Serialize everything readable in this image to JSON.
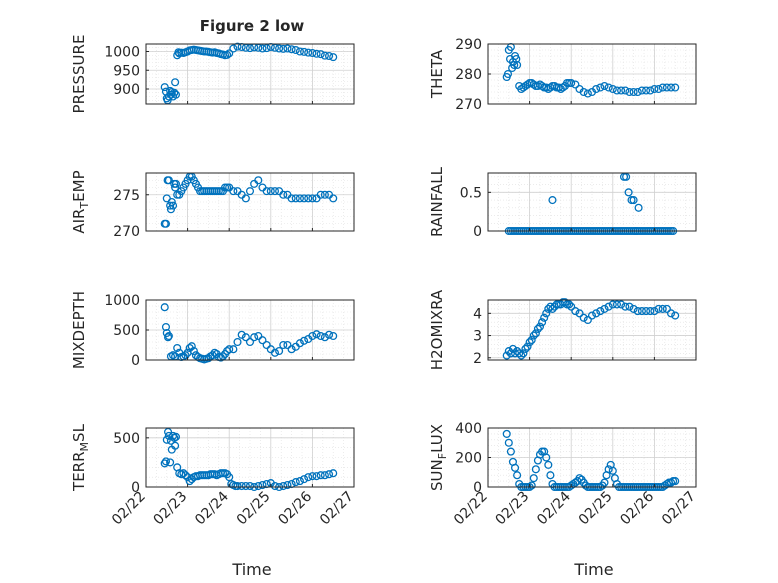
{
  "figure": {
    "title": "Figure 2 low",
    "x_label": "Time",
    "x_ticks": [
      "02/22",
      "02/23",
      "02/24",
      "02/25",
      "02/26",
      "02/27"
    ]
  },
  "colors": {
    "marker": "#0072bd",
    "axis": "#262626",
    "grid": "#dfdfdf"
  },
  "chart_data": [
    {
      "type": "scatter",
      "ylabel_main": "PRESSURE",
      "ylabel_sub": "",
      "ylim": [
        860,
        1020
      ],
      "yticks": [
        900,
        950,
        1000
      ],
      "xlim": [
        0,
        5
      ],
      "x": [
        0.45,
        0.48,
        0.5,
        0.52,
        0.55,
        0.58,
        0.6,
        0.62,
        0.65,
        0.68,
        0.7,
        0.72,
        0.75,
        0.78,
        0.8,
        0.85,
        0.9,
        0.95,
        1.0,
        1.05,
        1.1,
        1.15,
        1.2,
        1.25,
        1.3,
        1.35,
        1.4,
        1.45,
        1.5,
        1.55,
        1.6,
        1.65,
        1.7,
        1.75,
        1.8,
        1.85,
        1.9,
        1.95,
        2.0,
        2.1,
        2.2,
        2.3,
        2.4,
        2.5,
        2.6,
        2.7,
        2.8,
        2.9,
        3.0,
        3.1,
        3.2,
        3.3,
        3.4,
        3.5,
        3.6,
        3.7,
        3.8,
        3.9,
        4.0,
        4.1,
        4.2,
        4.3,
        4.4,
        4.5
      ],
      "y": [
        905,
        893,
        875,
        870,
        880,
        895,
        885,
        892,
        880,
        890,
        918,
        885,
        990,
        998,
        995,
        997,
        996,
        998,
        1000,
        1003,
        1004,
        1005,
        1004,
        1003,
        1002,
        1001,
        1000,
        1000,
        999,
        998,
        997,
        998,
        996,
        995,
        993,
        992,
        990,
        991,
        995,
        1008,
        1013,
        1012,
        1010,
        1009,
        1011,
        1010,
        1008,
        1009,
        1012,
        1010,
        1008,
        1007,
        1008,
        1006,
        1004,
        1000,
        999,
        997,
        996,
        994,
        993,
        989,
        988,
        985
      ]
    },
    {
      "type": "scatter",
      "ylabel_main": "THETA",
      "ylabel_sub": "",
      "ylim": [
        270,
        290
      ],
      "yticks": [
        270,
        280,
        290
      ],
      "xlim": [
        0,
        5
      ],
      "x": [
        0.45,
        0.48,
        0.5,
        0.53,
        0.55,
        0.58,
        0.6,
        0.63,
        0.65,
        0.68,
        0.7,
        0.75,
        0.8,
        0.85,
        0.9,
        0.95,
        1.0,
        1.05,
        1.1,
        1.15,
        1.2,
        1.25,
        1.3,
        1.35,
        1.4,
        1.45,
        1.5,
        1.55,
        1.6,
        1.65,
        1.7,
        1.75,
        1.8,
        1.85,
        1.9,
        1.95,
        2.0,
        2.1,
        2.2,
        2.3,
        2.4,
        2.5,
        2.6,
        2.7,
        2.8,
        2.9,
        3.0,
        3.1,
        3.2,
        3.3,
        3.4,
        3.5,
        3.6,
        3.7,
        3.8,
        3.9,
        4.0,
        4.1,
        4.2,
        4.3,
        4.4,
        4.5
      ],
      "y": [
        279,
        280,
        288,
        285,
        289,
        282,
        284,
        283,
        286,
        285,
        283,
        276,
        275,
        275.5,
        276,
        276.5,
        277,
        277,
        276.5,
        276,
        276,
        276.5,
        276,
        275.5,
        275.5,
        275,
        275.5,
        276,
        276,
        275.5,
        275.5,
        275,
        275.5,
        276,
        277,
        277,
        277,
        276.5,
        275,
        274,
        273.5,
        274,
        275,
        275.5,
        276,
        275.5,
        275,
        274.5,
        274.5,
        274.5,
        274,
        274,
        274,
        274.5,
        274.5,
        274.5,
        275,
        275,
        275.5,
        275.5,
        275.5,
        275.5
      ]
    },
    {
      "type": "scatter",
      "ylabel_main": "AIR",
      "ylabel_sub": "T",
      "ylabel_tail": "EMP",
      "ylim": [
        270,
        278
      ],
      "yticks": [
        270,
        275
      ],
      "xlim": [
        0,
        5
      ],
      "x": [
        0.45,
        0.48,
        0.5,
        0.52,
        0.55,
        0.58,
        0.6,
        0.62,
        0.65,
        0.68,
        0.7,
        0.72,
        0.75,
        0.8,
        0.85,
        0.9,
        0.95,
        1.0,
        1.05,
        1.1,
        1.15,
        1.2,
        1.25,
        1.3,
        1.35,
        1.4,
        1.45,
        1.5,
        1.55,
        1.6,
        1.65,
        1.7,
        1.75,
        1.8,
        1.85,
        1.9,
        1.95,
        2.0,
        2.1,
        2.2,
        2.3,
        2.4,
        2.5,
        2.6,
        2.7,
        2.8,
        2.9,
        3.0,
        3.1,
        3.2,
        3.3,
        3.4,
        3.5,
        3.6,
        3.7,
        3.8,
        3.9,
        4.0,
        4.1,
        4.2,
        4.3,
        4.4,
        4.5
      ],
      "y": [
        271,
        271,
        274.5,
        277,
        277,
        273.5,
        273,
        274,
        273.5,
        276.5,
        276,
        276.5,
        275,
        275,
        275.5,
        276,
        276.5,
        277,
        277.5,
        277.5,
        277,
        276.5,
        276,
        275.5,
        275.5,
        275.5,
        275.5,
        275.5,
        275.5,
        275.5,
        275.5,
        275.5,
        275.5,
        275.5,
        275.5,
        276,
        276,
        276,
        275.5,
        275.5,
        275,
        274.5,
        275.5,
        276.5,
        277,
        276,
        275.5,
        275.5,
        275.5,
        275.5,
        275,
        275,
        274.5,
        274.5,
        274.5,
        274.5,
        274.5,
        274.5,
        274.5,
        275,
        275,
        275,
        274.5
      ]
    },
    {
      "type": "scatter",
      "ylabel_main": "RAINFALL",
      "ylabel_sub": "",
      "ylim": [
        0,
        0.75
      ],
      "yticks": [
        0,
        0.5
      ],
      "xlim": [
        0,
        5
      ],
      "x": [
        0.5,
        0.55,
        0.6,
        0.65,
        0.7,
        0.75,
        0.8,
        0.85,
        0.9,
        0.95,
        1.0,
        1.05,
        1.1,
        1.15,
        1.2,
        1.25,
        1.3,
        1.35,
        1.4,
        1.45,
        1.5,
        1.55,
        1.6,
        1.65,
        1.7,
        1.75,
        1.8,
        1.85,
        1.9,
        1.95,
        2.0,
        2.05,
        2.1,
        2.15,
        2.2,
        2.25,
        2.3,
        2.35,
        2.4,
        2.45,
        2.5,
        2.55,
        2.6,
        2.65,
        2.7,
        2.75,
        2.8,
        2.85,
        2.9,
        2.95,
        3.0,
        3.05,
        3.1,
        3.15,
        3.2,
        3.25,
        3.3,
        3.35,
        3.4,
        3.45,
        3.5,
        3.55,
        3.6,
        3.65,
        3.7,
        3.75,
        3.8,
        3.85,
        3.9,
        3.95,
        4.0,
        4.05,
        4.1,
        4.15,
        4.2,
        4.25,
        4.3,
        4.35,
        4.4,
        4.45,
        1.55,
        3.27,
        3.32,
        3.38,
        3.45,
        3.5,
        3.55,
        3.62
      ],
      "y": [
        0,
        0,
        0,
        0,
        0,
        0,
        0,
        0,
        0,
        0,
        0,
        0,
        0,
        0,
        0,
        0,
        0,
        0,
        0,
        0,
        0,
        0,
        0,
        0,
        0,
        0,
        0,
        0,
        0,
        0,
        0,
        0,
        0,
        0,
        0,
        0,
        0,
        0,
        0,
        0,
        0,
        0,
        0,
        0,
        0,
        0,
        0,
        0,
        0,
        0,
        0,
        0,
        0,
        0,
        0,
        0,
        0,
        0,
        0,
        0,
        0,
        0,
        0,
        0,
        0,
        0,
        0,
        0,
        0,
        0,
        0,
        0,
        0,
        0,
        0,
        0,
        0,
        0,
        0,
        0,
        0.4,
        0.7,
        0.7,
        0.5,
        0.4,
        0.4,
        0,
        0.3
      ]
    },
    {
      "type": "scatter",
      "ylabel_main": "MIXDEPTH",
      "ylabel_sub": "",
      "ylim": [
        0,
        1000
      ],
      "yticks": [
        0,
        500,
        1000
      ],
      "xlim": [
        0,
        5
      ],
      "x": [
        0.45,
        0.48,
        0.5,
        0.53,
        0.55,
        0.6,
        0.65,
        0.7,
        0.75,
        0.8,
        0.85,
        0.9,
        0.95,
        1.0,
        1.05,
        1.1,
        1.15,
        1.2,
        1.25,
        1.3,
        1.35,
        1.4,
        1.45,
        1.5,
        1.55,
        1.6,
        1.65,
        1.7,
        1.75,
        1.8,
        1.85,
        1.9,
        1.95,
        2.0,
        2.1,
        2.2,
        2.3,
        2.4,
        2.5,
        2.6,
        2.7,
        2.8,
        2.9,
        3.0,
        3.1,
        3.2,
        3.3,
        3.4,
        3.5,
        3.6,
        3.7,
        3.8,
        3.9,
        4.0,
        4.1,
        4.2,
        4.3,
        4.4,
        4.5
      ],
      "y": [
        880,
        550,
        450,
        380,
        400,
        60,
        80,
        60,
        200,
        120,
        50,
        60,
        80,
        120,
        200,
        230,
        150,
        80,
        50,
        30,
        20,
        10,
        20,
        30,
        60,
        80,
        120,
        100,
        50,
        40,
        60,
        100,
        150,
        180,
        180,
        300,
        420,
        380,
        300,
        380,
        400,
        330,
        250,
        180,
        120,
        150,
        250,
        250,
        180,
        220,
        280,
        320,
        350,
        400,
        430,
        400,
        380,
        420,
        400
      ]
    },
    {
      "type": "scatter",
      "ylabel_main": "H2OMIXRA",
      "ylabel_sub": "",
      "ylim": [
        1.9,
        4.6
      ],
      "yticks": [
        2,
        3,
        4
      ],
      "xlim": [
        0,
        5
      ],
      "x": [
        0.45,
        0.5,
        0.55,
        0.6,
        0.65,
        0.7,
        0.75,
        0.8,
        0.85,
        0.9,
        0.95,
        1.0,
        1.05,
        1.1,
        1.15,
        1.2,
        1.25,
        1.3,
        1.35,
        1.4,
        1.45,
        1.5,
        1.55,
        1.6,
        1.65,
        1.7,
        1.75,
        1.8,
        1.85,
        1.9,
        1.95,
        2.0,
        2.1,
        2.2,
        2.3,
        2.4,
        2.5,
        2.6,
        2.7,
        2.8,
        2.9,
        3.0,
        3.1,
        3.2,
        3.3,
        3.4,
        3.5,
        3.6,
        3.7,
        3.8,
        3.9,
        4.0,
        4.1,
        4.2,
        4.3,
        4.4,
        4.5
      ],
      "y": [
        2.1,
        2.3,
        2.2,
        2.4,
        2.2,
        2.3,
        2.2,
        2.1,
        2.2,
        2.4,
        2.5,
        2.7,
        2.8,
        3.0,
        3.1,
        3.3,
        3.4,
        3.6,
        3.8,
        4.0,
        4.2,
        4.3,
        4.2,
        4.3,
        4.4,
        4.4,
        4.4,
        4.5,
        4.5,
        4.4,
        4.4,
        4.3,
        4.1,
        4.0,
        3.8,
        3.7,
        3.9,
        4.0,
        4.1,
        4.2,
        4.3,
        4.4,
        4.4,
        4.4,
        4.3,
        4.3,
        4.2,
        4.1,
        4.1,
        4.1,
        4.1,
        4.1,
        4.2,
        4.2,
        4.2,
        4.0,
        3.9
      ]
    },
    {
      "type": "scatter",
      "ylabel_main": "TERR",
      "ylabel_sub": "M",
      "ylabel_tail": "SL",
      "ylim": [
        0,
        600
      ],
      "yticks": [
        0,
        500
      ],
      "xlim": [
        0,
        5
      ],
      "x": [
        0.45,
        0.48,
        0.5,
        0.53,
        0.55,
        0.58,
        0.6,
        0.62,
        0.65,
        0.68,
        0.7,
        0.72,
        0.75,
        0.8,
        0.85,
        0.9,
        0.95,
        1.0,
        1.05,
        1.1,
        1.15,
        1.2,
        1.25,
        1.3,
        1.35,
        1.4,
        1.45,
        1.5,
        1.55,
        1.6,
        1.65,
        1.7,
        1.75,
        1.8,
        1.85,
        1.9,
        1.95,
        2.0,
        2.05,
        2.1,
        2.15,
        2.2,
        2.3,
        2.4,
        2.5,
        2.6,
        2.7,
        2.8,
        2.9,
        3.0,
        3.1,
        3.2,
        3.3,
        3.4,
        3.5,
        3.6,
        3.7,
        3.8,
        3.9,
        4.0,
        4.1,
        4.2,
        4.3,
        4.4,
        4.5
      ],
      "y": [
        240,
        260,
        480,
        560,
        520,
        250,
        470,
        380,
        520,
        500,
        420,
        510,
        200,
        140,
        130,
        140,
        120,
        100,
        60,
        80,
        100,
        110,
        110,
        120,
        120,
        120,
        120,
        120,
        130,
        130,
        130,
        120,
        130,
        140,
        140,
        140,
        130,
        100,
        30,
        20,
        10,
        10,
        10,
        10,
        10,
        0,
        10,
        20,
        30,
        40,
        10,
        0,
        10,
        20,
        30,
        50,
        60,
        80,
        100,
        110,
        110,
        120,
        120,
        130,
        140
      ]
    },
    {
      "type": "scatter",
      "ylabel_main": "SUN",
      "ylabel_sub": "F",
      "ylabel_tail": "LUX",
      "ylim": [
        0,
        400
      ],
      "yticks": [
        0,
        200,
        400
      ],
      "xlim": [
        0,
        5
      ],
      "x": [
        0.45,
        0.5,
        0.55,
        0.6,
        0.65,
        0.7,
        0.75,
        0.8,
        0.85,
        0.9,
        0.95,
        1.0,
        1.05,
        1.1,
        1.15,
        1.2,
        1.25,
        1.3,
        1.35,
        1.4,
        1.45,
        1.5,
        1.55,
        1.6,
        1.65,
        1.7,
        1.75,
        1.8,
        1.85,
        1.9,
        1.95,
        2.0,
        2.05,
        2.1,
        2.15,
        2.2,
        2.25,
        2.3,
        2.35,
        2.4,
        2.45,
        2.5,
        2.55,
        2.6,
        2.65,
        2.7,
        2.75,
        2.8,
        2.85,
        2.9,
        2.95,
        3.0,
        3.05,
        3.1,
        3.15,
        3.2,
        3.25,
        3.3,
        3.35,
        3.4,
        3.45,
        3.5,
        3.55,
        3.6,
        3.65,
        3.7,
        3.75,
        3.8,
        3.85,
        3.9,
        3.95,
        4.0,
        4.05,
        4.1,
        4.15,
        4.2,
        4.25,
        4.3,
        4.35,
        4.4,
        4.45,
        4.5
      ],
      "y": [
        360,
        300,
        240,
        170,
        130,
        80,
        20,
        0,
        0,
        0,
        0,
        0,
        10,
        60,
        120,
        180,
        220,
        240,
        240,
        200,
        150,
        80,
        20,
        0,
        0,
        0,
        0,
        0,
        0,
        0,
        0,
        10,
        20,
        30,
        40,
        60,
        50,
        30,
        10,
        0,
        0,
        0,
        0,
        0,
        0,
        0,
        10,
        30,
        80,
        120,
        150,
        110,
        60,
        20,
        0,
        0,
        0,
        0,
        0,
        0,
        0,
        0,
        0,
        0,
        0,
        0,
        0,
        0,
        0,
        0,
        0,
        0,
        0,
        0,
        0,
        0,
        10,
        20,
        30,
        30,
        40,
        40
      ]
    }
  ]
}
